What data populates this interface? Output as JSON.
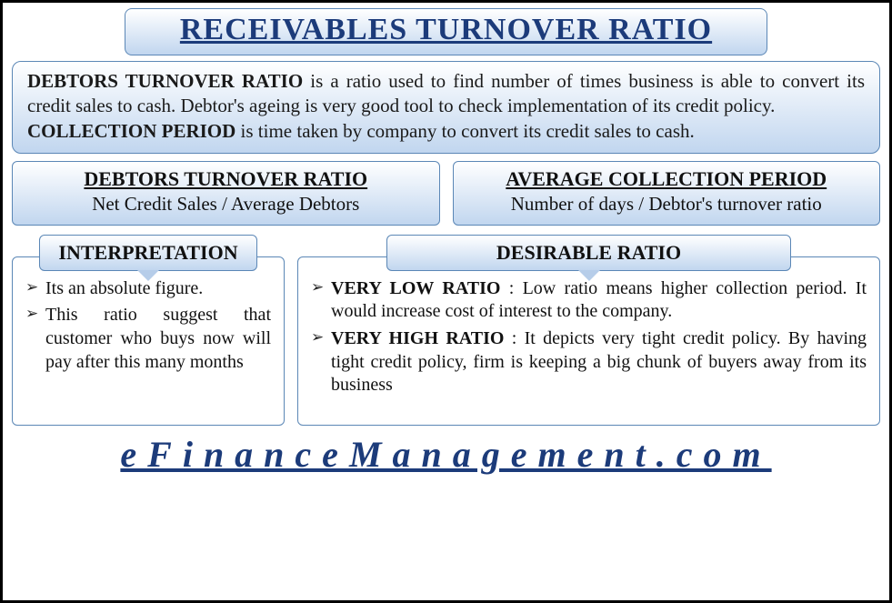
{
  "colors": {
    "border": "#000000",
    "box_border": "#5b87b6",
    "gradient_top": "#ffffff",
    "gradient_bottom": "#c1d6ef",
    "primary_text": "#1c3b7a",
    "body_text": "#111111"
  },
  "title": "RECEIVABLES TURNOVER RATIO",
  "definitions": {
    "part1_bold": "DEBTORS TURNOVER RATIO",
    "part1_text": " is a ratio used to find number of times business is able to convert its credit sales to cash. Debtor's ageing is very good tool to check implementation of its credit policy.",
    "part2_bold": "COLLECTION PERIOD",
    "part2_text": " is time taken by company to convert its credit sales to cash."
  },
  "formulas": [
    {
      "title": "DEBTORS TURNOVER RATIO",
      "body": "Net Credit Sales / Average Debtors"
    },
    {
      "title": "AVERAGE COLLECTION PERIOD",
      "body": "Number of days / Debtor's turnover ratio"
    }
  ],
  "interpretation": {
    "heading": "INTERPRETATION",
    "bullets": [
      "Its an absolute figure.",
      "This ratio suggest that customer who buys now will pay after this many months"
    ]
  },
  "desirable": {
    "heading": "DESIRABLE RATIO",
    "bullets": [
      {
        "bold": "VERY LOW RATIO",
        "text": " : Low ratio means higher collection period. It would increase cost of interest to the company."
      },
      {
        "bold": "VERY HIGH RATIO",
        "text": " : It depicts very tight credit policy. By having tight credit policy, firm is keeping a big chunk of buyers away from its business"
      }
    ]
  },
  "footer": {
    "site": "eFinanceManagement.com"
  }
}
